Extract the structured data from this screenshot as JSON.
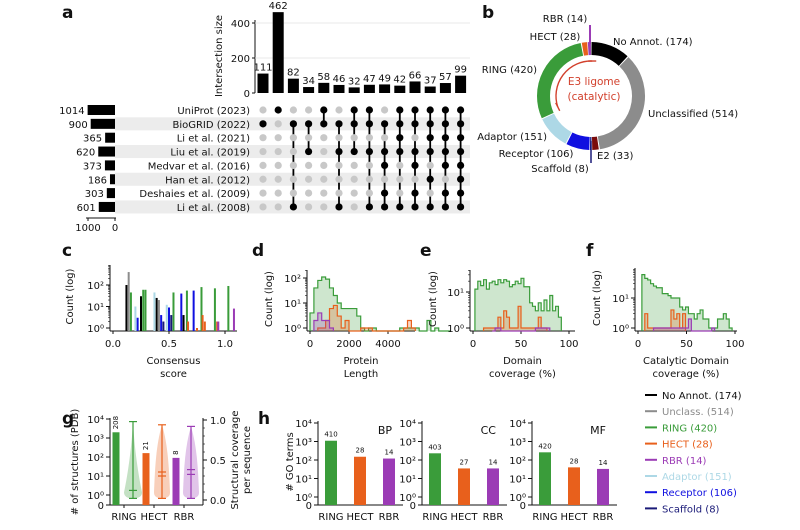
{
  "colors": {
    "no_annot": "#000000",
    "unclassified": "#8c8c8c",
    "ring": "#3a9c3a",
    "hect": "#e8601c",
    "rbr": "#9b3bb5",
    "adaptor": "#add8e6",
    "receptor": "#1010e0",
    "scaffold": "#1a1a78",
    "e2": "#7a0c0c",
    "e3": "#d2402c"
  },
  "panels": {
    "a": "a",
    "b": "b",
    "c": "c",
    "d": "d",
    "e": "e",
    "f": "f",
    "g": "g",
    "h": "h"
  },
  "panel_a": {
    "ylabel": "Intersection size",
    "yticks": [
      "0",
      "200",
      "400"
    ],
    "set_axis_ticks": [
      "1000",
      "0"
    ],
    "sets": [
      {
        "name": "UniProt (2023)",
        "size": 1014
      },
      {
        "name": "BioGRID (2022)",
        "size": 900
      },
      {
        "name": "Li et al. (2021)",
        "size": 365
      },
      {
        "name": "Liu et al. (2019)",
        "size": 620
      },
      {
        "name": "Medvar et al. (2016)",
        "size": 373
      },
      {
        "name": "Han et al. (2012)",
        "size": 186
      },
      {
        "name": "Deshaies et al. (2009)",
        "size": 303
      },
      {
        "name": "Li et al. (2008)",
        "size": 601
      }
    ],
    "intersections": [
      {
        "value": 111,
        "members": [
          1
        ]
      },
      {
        "value": 462,
        "members": [
          0
        ]
      },
      {
        "value": 82,
        "members": [
          1,
          7
        ]
      },
      {
        "value": 34,
        "members": [
          1,
          3
        ]
      },
      {
        "value": 58,
        "members": [
          0,
          1
        ]
      },
      {
        "value": 46,
        "members": [
          1,
          3,
          7
        ]
      },
      {
        "value": 32,
        "members": [
          0,
          1,
          3
        ]
      },
      {
        "value": 47,
        "members": [
          0,
          1,
          3,
          7
        ]
      },
      {
        "value": 49,
        "members": [
          1,
          3,
          4,
          6,
          7
        ]
      },
      {
        "value": 42,
        "members": [
          0,
          1,
          2,
          3,
          7
        ]
      },
      {
        "value": 66,
        "members": [
          0,
          1,
          3,
          4,
          6,
          7
        ]
      },
      {
        "value": 37,
        "members": [
          0,
          1,
          2,
          3,
          5,
          7
        ]
      },
      {
        "value": 57,
        "members": [
          0,
          1,
          2,
          3,
          4,
          6,
          7
        ]
      },
      {
        "value": 99,
        "members": [
          0,
          1,
          2,
          3,
          4,
          5,
          6,
          7
        ]
      }
    ]
  },
  "panel_b": {
    "center_title_1": "E3 ligome",
    "center_title_2": "(catalytic)",
    "segments": [
      {
        "label": "No Annot. (174)",
        "value": 174,
        "color": "no_annot"
      },
      {
        "label": "Unclassified (514)",
        "value": 514,
        "color": "unclassified"
      },
      {
        "label": "E2 (33)",
        "value": 33,
        "color": "e2"
      },
      {
        "label": "Scaffold (8)",
        "value": 8,
        "color": "scaffold"
      },
      {
        "label": "Receptor (106)",
        "value": 106,
        "color": "receptor"
      },
      {
        "label": "Adaptor (151)",
        "value": 151,
        "color": "adaptor"
      },
      {
        "label": "RING (420)",
        "value": 420,
        "color": "ring"
      },
      {
        "label": "HECT (28)",
        "value": 28,
        "color": "hect"
      },
      {
        "label": "RBR (14)",
        "value": 14,
        "color": "rbr"
      }
    ]
  },
  "chart_data": [
    {
      "id": "c",
      "type": "bar",
      "xlabel_1": "Consensus",
      "xlabel_2": "score",
      "ylabel": "Count (log)",
      "xticks": [
        "0.0",
        "0.5",
        "1.0"
      ],
      "yticks": [
        "10⁰",
        "10¹",
        "10²"
      ],
      "yscale": "log",
      "bars": [
        [
          0.12,
          "no_annot",
          100
        ],
        [
          0.14,
          "unclassified",
          400
        ],
        [
          0.16,
          "ring",
          45
        ],
        [
          0.2,
          "adaptor",
          10
        ],
        [
          0.22,
          "receptor",
          3
        ],
        [
          0.25,
          "no_annot",
          30
        ],
        [
          0.27,
          "ring",
          60
        ],
        [
          0.29,
          "ring",
          60
        ],
        [
          0.37,
          "adaptor",
          45
        ],
        [
          0.39,
          "no_annot",
          25
        ],
        [
          0.41,
          "unclassified",
          20
        ],
        [
          0.43,
          "receptor",
          4
        ],
        [
          0.45,
          "scaffold",
          2
        ],
        [
          0.48,
          "adaptor",
          12
        ],
        [
          0.5,
          "receptor",
          9
        ],
        [
          0.52,
          "scaffold",
          4
        ],
        [
          0.54,
          "ring",
          45
        ],
        [
          0.61,
          "receptor",
          40
        ],
        [
          0.63,
          "no_annot",
          4
        ],
        [
          0.66,
          "ring",
          55
        ],
        [
          0.67,
          "hect",
          2
        ],
        [
          0.72,
          "receptor",
          55
        ],
        [
          0.75,
          "hect",
          1
        ],
        [
          0.79,
          "ring",
          80
        ],
        [
          0.8,
          "hect",
          4
        ],
        [
          0.82,
          "hect",
          2
        ],
        [
          0.91,
          "ring",
          70
        ],
        [
          0.93,
          "hect",
          2
        ],
        [
          0.94,
          "rbr",
          2
        ],
        [
          1.03,
          "ring",
          90
        ],
        [
          1.08,
          "rbr",
          8
        ]
      ]
    },
    {
      "id": "d",
      "type": "area",
      "xlabel_1": "Protein",
      "xlabel_2": "Length",
      "ylabel": "Count (log)",
      "xticks": [
        "0",
        "2000",
        "4000"
      ],
      "yticks": [
        "10⁰",
        "10¹",
        "10²"
      ],
      "yscale": "log",
      "bin_width": 200,
      "series": [
        {
          "name": "ring",
          "start": 0,
          "counts": [
            4,
            40,
            80,
            110,
            90,
            40,
            20,
            10,
            6,
            6,
            6,
            6,
            3,
            1,
            0,
            1,
            1,
            0,
            0,
            0,
            0,
            0,
            0,
            1,
            1,
            1,
            1,
            1,
            0,
            0,
            2,
            0,
            1,
            0,
            0,
            0
          ]
        },
        {
          "name": "hect",
          "start": 400,
          "counts": [
            1,
            1,
            2,
            6,
            8,
            3,
            1,
            2,
            0,
            0,
            0,
            1,
            1,
            1,
            0,
            0,
            0,
            0,
            0,
            0,
            0,
            0,
            1,
            2,
            1
          ]
        },
        {
          "name": "rbr",
          "start": 200,
          "counts": [
            2,
            4,
            2,
            2,
            1
          ]
        }
      ]
    },
    {
      "id": "e",
      "type": "area",
      "xlabel_1": "Domain",
      "xlabel_2": "coverage (%)",
      "ylabel": "Count (log)",
      "xticks": [
        "0",
        "50",
        "100"
      ],
      "yticks": [
        "10⁰",
        "10¹"
      ],
      "yscale": "log",
      "bin_width": 3,
      "series": [
        {
          "name": "ring",
          "start": 2,
          "counts": [
            12,
            20,
            15,
            22,
            12,
            18,
            20,
            16,
            22,
            18,
            22,
            20,
            14,
            16,
            20,
            17,
            24,
            14,
            14,
            5,
            4,
            3,
            5,
            3,
            6,
            3,
            8,
            3,
            4,
            2
          ]
        },
        {
          "name": "hect",
          "start": 11,
          "counts": [
            1,
            1,
            1,
            1,
            1,
            2,
            1,
            3,
            2,
            1,
            1,
            1,
            4,
            1,
            1,
            1,
            1,
            1,
            1,
            2,
            1,
            1
          ]
        },
        {
          "name": "rbr",
          "start": 20,
          "counts": [
            0,
            1,
            1,
            0,
            0,
            0,
            0,
            0,
            0,
            0,
            0,
            0,
            0,
            0,
            0,
            1,
            1,
            1,
            1,
            1
          ]
        }
      ]
    },
    {
      "id": "f",
      "type": "area",
      "xlabel_1": "Catalytic Domain",
      "xlabel_2": "coverage (%)",
      "ylabel": "Count (log)",
      "xticks": [
        "0",
        "50",
        "100"
      ],
      "yticks": [
        "10⁰",
        "10¹"
      ],
      "yscale": "log",
      "bin_width": 3,
      "series": [
        {
          "name": "ring",
          "start": 4,
          "counts": [
            60,
            45,
            40,
            30,
            25,
            22,
            22,
            14,
            14,
            12,
            10,
            10,
            10,
            5,
            4,
            5,
            3,
            3,
            2,
            3,
            4,
            2,
            2,
            1,
            1,
            1,
            2,
            2,
            3,
            2,
            1
          ]
        },
        {
          "name": "hect",
          "start": 7,
          "counts": [
            3,
            1,
            1,
            1,
            1,
            1,
            1,
            1,
            1,
            4,
            2,
            3,
            1,
            3
          ]
        },
        {
          "name": "rbr",
          "start": 16,
          "counts": [
            1,
            1,
            1,
            1,
            1,
            1,
            1,
            1,
            1,
            1,
            1,
            1,
            2,
            0,
            0,
            0,
            0,
            0,
            0,
            0,
            1
          ]
        }
      ]
    },
    {
      "id": "g",
      "type": "bar",
      "ylabel": "# of structures (PDB)",
      "ylabel_right_1": "Structural coverage",
      "ylabel_right_2": "per sequence",
      "categories": [
        "RING",
        "HECT",
        "RBR"
      ],
      "values": [
        2000,
        160,
        90
      ],
      "bar_labels": [
        "208",
        "21",
        "8"
      ],
      "yticks": [
        "0",
        "10⁰",
        "10¹",
        "10²",
        "10³",
        "10⁴"
      ],
      "yticks_right": [
        "0.0",
        "0.5",
        "1.0"
      ],
      "violins": [
        {
          "name": "ring",
          "min": 0.02,
          "median": 0.12,
          "max": 0.98
        },
        {
          "name": "hect",
          "min": 0.02,
          "median": 0.3,
          "mean": 0.35,
          "max": 0.94
        },
        {
          "name": "rbr",
          "min": 0.02,
          "median": 0.32,
          "mean": 0.38,
          "max": 0.92
        }
      ]
    },
    {
      "id": "h",
      "type": "bar",
      "ylabel": "# GO terms",
      "yticks": [
        "0",
        "10⁰",
        "10¹",
        "10²",
        "10³",
        "10⁴"
      ],
      "subplots": [
        {
          "title": "BP",
          "categories": [
            "RING",
            "HECT",
            "RBR"
          ],
          "values": [
            1100,
            150,
            120
          ],
          "bar_labels": [
            "410",
            "28",
            "14"
          ]
        },
        {
          "title": "CC",
          "categories": [
            "RING",
            "HECT",
            "RBR"
          ],
          "values": [
            230,
            35,
            35
          ],
          "bar_labels": [
            "403",
            "27",
            "14"
          ]
        },
        {
          "title": "MF",
          "categories": [
            "RING",
            "HECT",
            "RBR"
          ],
          "values": [
            260,
            40,
            33
          ],
          "bar_labels": [
            "420",
            "28",
            "14"
          ]
        }
      ]
    }
  ],
  "legend": [
    {
      "label": "No Annot. (174)",
      "color": "no_annot"
    },
    {
      "label": "Unclass. (514)",
      "color": "unclassified"
    },
    {
      "label": "RING (420)",
      "color": "ring"
    },
    {
      "label": "HECT (28)",
      "color": "hect"
    },
    {
      "label": "RBR (14)",
      "color": "rbr"
    },
    {
      "label": "Adaptor (151)",
      "color": "adaptor"
    },
    {
      "label": "Receptor (106)",
      "color": "receptor"
    },
    {
      "label": "Scaffold (8)",
      "color": "scaffold"
    }
  ]
}
